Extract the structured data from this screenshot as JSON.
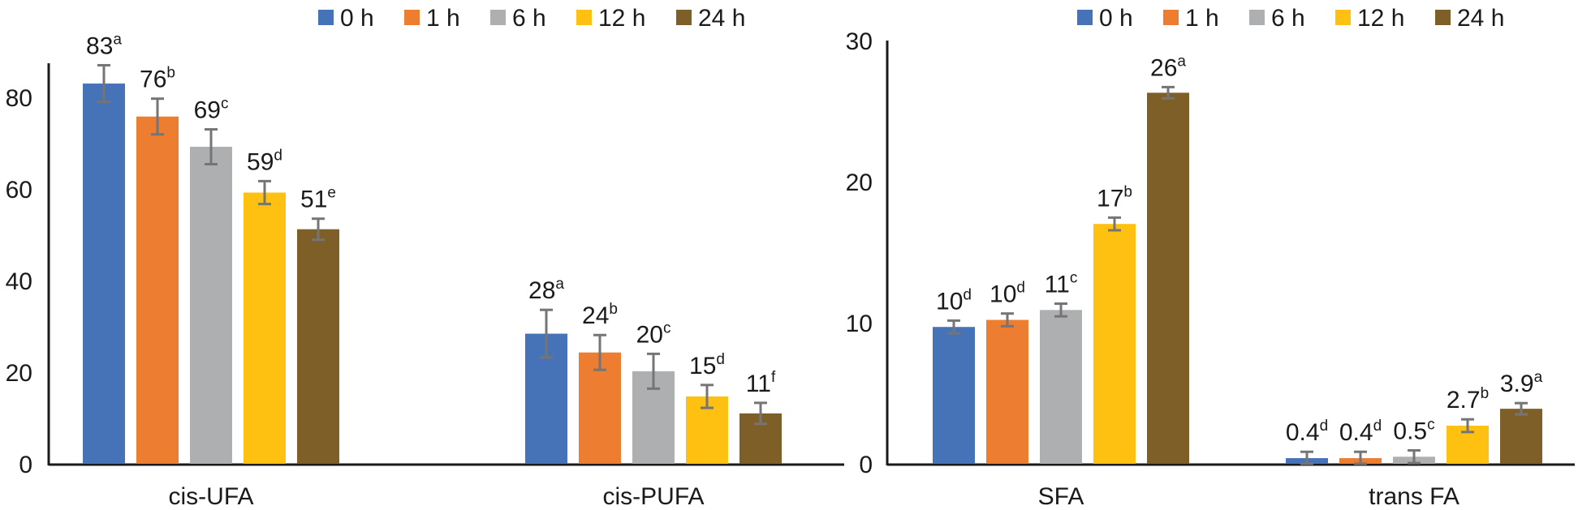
{
  "legend": [
    "0 h",
    "1 h",
    "6 h",
    "12 h",
    "24 h"
  ],
  "colors": [
    "#4672B8",
    "#ED7D31",
    "#AEAFB1",
    "#FEC011",
    "#7E5F27"
  ],
  "error_color": "#757575",
  "chart_data": [
    {
      "type": "bar",
      "title": "",
      "xlabel": "",
      "ylabel": "",
      "ylim": [
        0,
        87
      ],
      "yticks": [
        0,
        20,
        40,
        60,
        80
      ],
      "grid": false,
      "legend_position": "top-right",
      "categories": [
        "cis-UFA",
        "cis-PUFA"
      ],
      "series": [
        {
          "name": "0 h",
          "values": [
            83,
            28.4
          ],
          "errors": [
            4.0,
            5.2
          ],
          "labels": [
            "83",
            "28"
          ],
          "letters": [
            "a",
            "a"
          ]
        },
        {
          "name": "1 h",
          "values": [
            75.8,
            24.3
          ],
          "errors": [
            3.9,
            3.8
          ],
          "labels": [
            "76",
            "24"
          ],
          "letters": [
            "b",
            "b"
          ]
        },
        {
          "name": "6 h",
          "values": [
            69.2,
            20.2
          ],
          "errors": [
            3.8,
            3.8
          ],
          "labels": [
            "69",
            "20"
          ],
          "letters": [
            "c",
            "c"
          ]
        },
        {
          "name": "12 h",
          "values": [
            59.2,
            14.7
          ],
          "errors": [
            2.5,
            2.5
          ],
          "labels": [
            "59",
            "15"
          ],
          "letters": [
            "d",
            "d"
          ]
        },
        {
          "name": "24 h",
          "values": [
            51.2,
            11.0
          ],
          "errors": [
            2.3,
            2.3
          ],
          "labels": [
            "51",
            "11"
          ],
          "letters": [
            "e",
            "f"
          ]
        }
      ]
    },
    {
      "type": "bar",
      "title": "",
      "xlabel": "",
      "ylabel": "",
      "ylim": [
        0,
        30
      ],
      "yticks": [
        0,
        10,
        20,
        30
      ],
      "grid": false,
      "legend_position": "top-right",
      "categories": [
        "SFA",
        "trans FA"
      ],
      "series": [
        {
          "name": "0 h",
          "values": [
            9.7,
            0.4
          ],
          "errors": [
            0.45,
            0.45
          ],
          "labels": [
            "10",
            "0.4"
          ],
          "letters": [
            "d",
            "d"
          ]
        },
        {
          "name": "1 h",
          "values": [
            10.2,
            0.4
          ],
          "errors": [
            0.45,
            0.45
          ],
          "labels": [
            "10",
            "0.4"
          ],
          "letters": [
            "d",
            "d"
          ]
        },
        {
          "name": "6 h",
          "values": [
            10.9,
            0.5
          ],
          "errors": [
            0.45,
            0.45
          ],
          "labels": [
            "11",
            "0.5"
          ],
          "letters": [
            "c",
            "c"
          ]
        },
        {
          "name": "12 h",
          "values": [
            17.0,
            2.7
          ],
          "errors": [
            0.45,
            0.45
          ],
          "labels": [
            "17",
            "2.7"
          ],
          "letters": [
            "b",
            "b"
          ]
        },
        {
          "name": "24 h",
          "values": [
            26.3,
            3.9
          ],
          "errors": [
            0.4,
            0.4
          ],
          "labels": [
            "26",
            "3.9"
          ],
          "letters": [
            "a",
            "a"
          ]
        }
      ]
    }
  ]
}
